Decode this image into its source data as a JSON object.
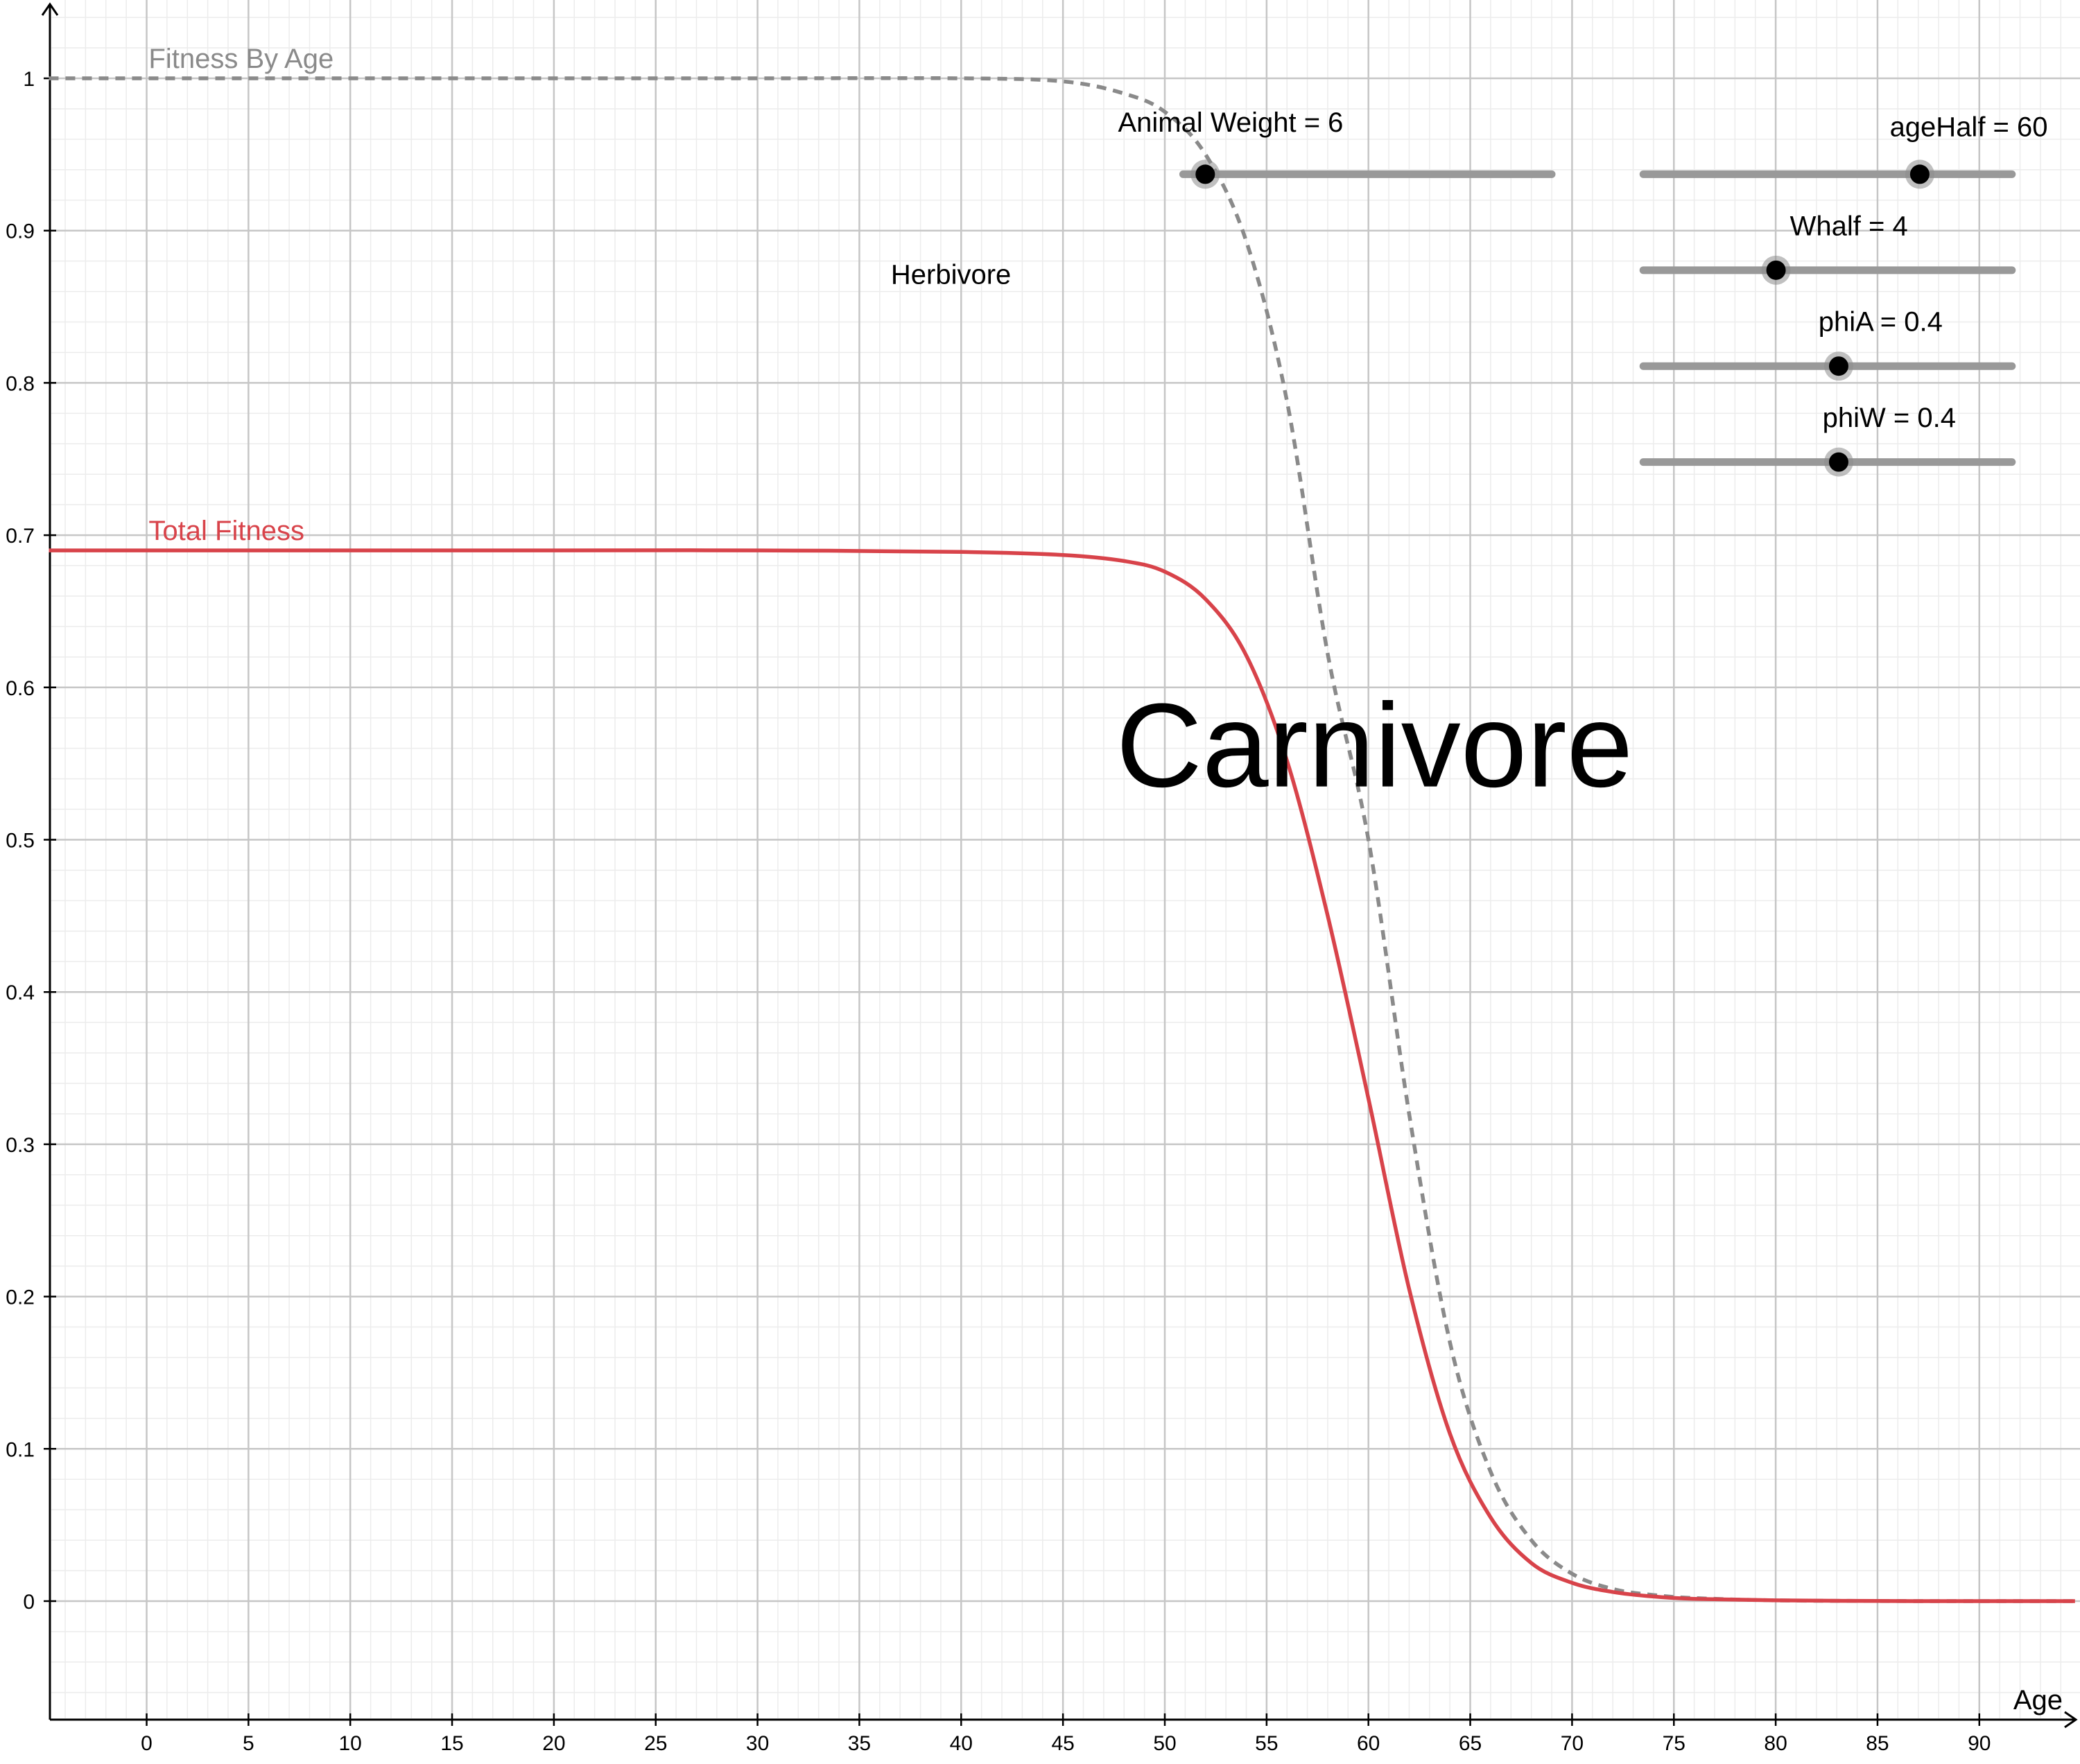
{
  "colors": {
    "background": "#ffffff",
    "minor_grid": "#ececec",
    "major_grid": "#c6c6c6",
    "axis": "#000000",
    "total_fitness": "#d8434a",
    "fitness_by_age": "#8a8a8a",
    "slider_track": "#999999",
    "slider_point": "#000000"
  },
  "chart_data": {
    "type": "line",
    "title": "",
    "xlabel": "Age",
    "ylabel": "",
    "xlim": [
      -4.8,
      94.7
    ],
    "ylim": [
      -0.077,
      1.05
    ],
    "x_ticks": [
      0,
      5,
      10,
      15,
      20,
      25,
      30,
      35,
      40,
      45,
      50,
      55,
      60,
      65,
      70,
      75,
      80,
      85,
      90
    ],
    "y_ticks": [
      0,
      0.1,
      0.2,
      0.3,
      0.4,
      0.5,
      0.6,
      0.7,
      0.8,
      0.9,
      1
    ],
    "grid": true,
    "series": [
      {
        "name": "Total Fitness",
        "style": "solid",
        "x": [
          -4.8,
          0,
          10,
          20,
          30,
          40,
          45,
          48,
          50,
          52,
          54,
          56,
          58,
          60,
          62,
          64,
          66,
          68,
          70,
          72,
          74,
          76,
          80,
          85,
          90,
          94.7
        ],
        "y": [
          0.69,
          0.69,
          0.69,
          0.69,
          0.69,
          0.689,
          0.687,
          0.683,
          0.676,
          0.658,
          0.621,
          0.552,
          0.45,
          0.33,
          0.205,
          0.11,
          0.055,
          0.025,
          0.012,
          0.006,
          0.003,
          0.0015,
          0.0005,
          0.0001,
          0.0,
          0.0
        ]
      },
      {
        "name": "Fitness By Age",
        "style": "dashed",
        "x": [
          -4.8,
          0,
          10,
          20,
          30,
          40,
          45,
          48,
          50,
          52,
          54,
          56,
          58,
          60,
          62,
          64,
          66,
          68,
          70,
          72,
          74,
          76,
          80,
          85,
          90,
          94.7
        ],
        "y": [
          1.0,
          1.0,
          1.0,
          1.0,
          1.0,
          1.0,
          0.998,
          0.99,
          0.978,
          0.95,
          0.893,
          0.788,
          0.622,
          0.5,
          0.32,
          0.17,
          0.085,
          0.04,
          0.018,
          0.008,
          0.004,
          0.002,
          0.0005,
          0.0001,
          0.0,
          0.0
        ]
      }
    ],
    "annotations": [
      {
        "text": "Herbivore",
        "x": 39.5,
        "y": 0.865,
        "style": "normal"
      },
      {
        "text": "Carnivore",
        "x": 60.3,
        "y": 0.535,
        "style": "large"
      }
    ]
  },
  "sliders": [
    {
      "label": "Animal Weight = 6",
      "name": "animal-weight-slider",
      "track_x": [
        50.9,
        69.0
      ],
      "y": 0.937,
      "value_fraction": 0.06,
      "label_x": 47.7,
      "label_y": 0.965
    },
    {
      "label": "ageHalf = 60",
      "name": "agehalf-slider",
      "track_x": [
        73.5,
        91.6
      ],
      "y": 0.937,
      "value_fraction": 0.75,
      "label_x": 85.6,
      "label_y": 0.962
    },
    {
      "label": "Whalf = 4",
      "name": "whalf-slider",
      "track_x": [
        73.5,
        91.6
      ],
      "y": 0.874,
      "value_fraction": 0.36,
      "label_x": 80.7,
      "label_y": 0.897
    },
    {
      "label": "phiA = 0.4",
      "name": "phia-slider",
      "track_x": [
        73.5,
        91.6
      ],
      "y": 0.811,
      "value_fraction": 0.53,
      "label_x": 82.1,
      "label_y": 0.834
    },
    {
      "label": "phiW = 0.4",
      "name": "phiw-slider",
      "track_x": [
        73.5,
        91.6
      ],
      "y": 0.748,
      "value_fraction": 0.53,
      "label_x": 82.3,
      "label_y": 0.771
    }
  ]
}
